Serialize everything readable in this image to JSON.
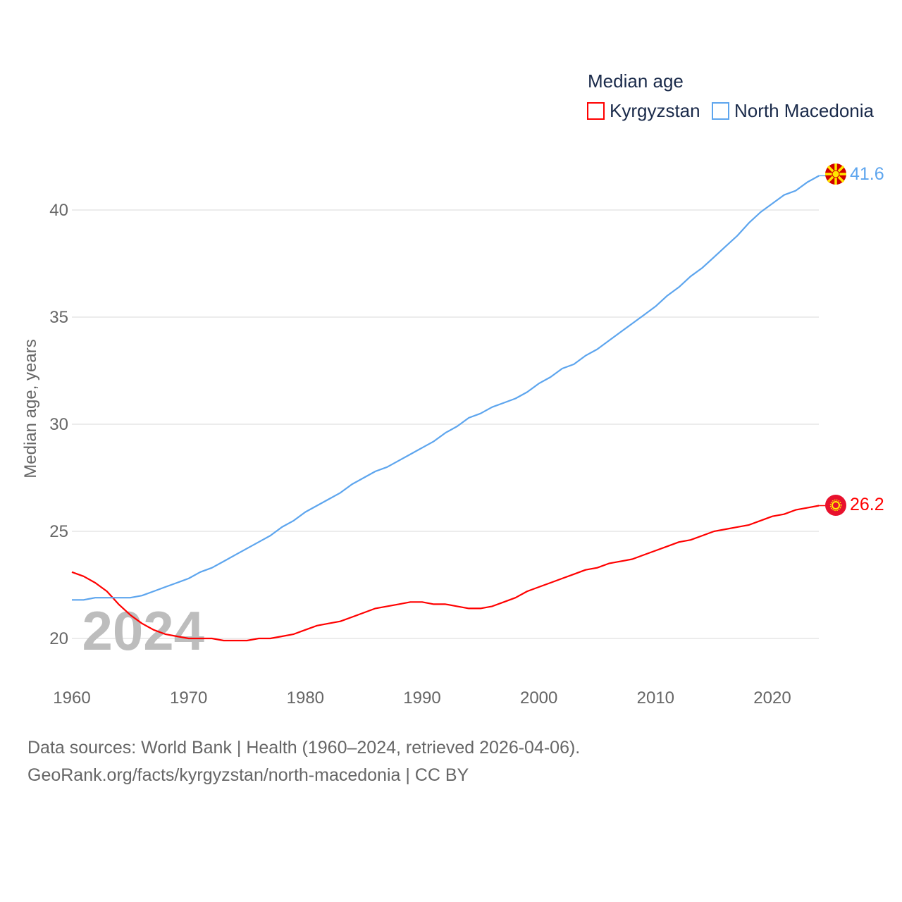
{
  "chart_data": {
    "type": "line",
    "legend_title": "Median age",
    "legend_position": "top-right",
    "ylabel": "Median age, years",
    "xlabel": "",
    "year_watermark": "2024",
    "x": [
      1960,
      1961,
      1962,
      1963,
      1964,
      1965,
      1966,
      1967,
      1968,
      1969,
      1970,
      1971,
      1972,
      1973,
      1974,
      1975,
      1976,
      1977,
      1978,
      1979,
      1980,
      1981,
      1982,
      1983,
      1984,
      1985,
      1986,
      1987,
      1988,
      1989,
      1990,
      1991,
      1992,
      1993,
      1994,
      1995,
      1996,
      1997,
      1998,
      1999,
      2000,
      2001,
      2002,
      2003,
      2004,
      2005,
      2006,
      2007,
      2008,
      2009,
      2010,
      2011,
      2012,
      2013,
      2014,
      2015,
      2016,
      2017,
      2018,
      2019,
      2020,
      2021,
      2022,
      2023,
      2024
    ],
    "xticks": [
      "1960",
      "1970",
      "1980",
      "1990",
      "2000",
      "2010",
      "2020"
    ],
    "yticks": [
      "20",
      "25",
      "30",
      "35",
      "40"
    ],
    "series": [
      {
        "name": "Kyrgyzstan",
        "color": "#ff0000",
        "end_label": "26.2",
        "flag": "kyrgyzstan-flag",
        "values": [
          23.1,
          22.9,
          22.6,
          22.2,
          21.6,
          21.1,
          20.7,
          20.4,
          20.2,
          20.1,
          20.0,
          20.0,
          20.0,
          19.9,
          19.9,
          19.9,
          20.0,
          20.0,
          20.1,
          20.2,
          20.4,
          20.6,
          20.7,
          20.8,
          21.0,
          21.2,
          21.4,
          21.5,
          21.6,
          21.7,
          21.7,
          21.6,
          21.6,
          21.5,
          21.4,
          21.4,
          21.5,
          21.7,
          21.9,
          22.2,
          22.4,
          22.6,
          22.8,
          23.0,
          23.2,
          23.3,
          23.5,
          23.6,
          23.7,
          23.9,
          24.1,
          24.3,
          24.5,
          24.6,
          24.8,
          25.0,
          25.1,
          25.2,
          25.3,
          25.5,
          25.7,
          25.8,
          26.0,
          26.1,
          26.2
        ]
      },
      {
        "name": "North Macedonia",
        "color": "#5da5ee",
        "end_label": "41.6",
        "flag": "north-macedonia-flag",
        "values": [
          21.8,
          21.8,
          21.9,
          21.9,
          21.9,
          21.9,
          22.0,
          22.2,
          22.4,
          22.6,
          22.8,
          23.1,
          23.3,
          23.6,
          23.9,
          24.2,
          24.5,
          24.8,
          25.2,
          25.5,
          25.9,
          26.2,
          26.5,
          26.8,
          27.2,
          27.5,
          27.8,
          28.0,
          28.3,
          28.6,
          28.9,
          29.2,
          29.6,
          29.9,
          30.3,
          30.5,
          30.8,
          31.0,
          31.2,
          31.5,
          31.9,
          32.2,
          32.6,
          32.8,
          33.2,
          33.5,
          33.9,
          34.3,
          34.7,
          35.1,
          35.5,
          36.0,
          36.4,
          36.9,
          37.3,
          37.8,
          38.3,
          38.8,
          39.4,
          39.9,
          40.3,
          40.7,
          40.9,
          41.3,
          41.6
        ]
      }
    ]
  },
  "footer": {
    "line1": "Data sources: World Bank | Health (1960–2024, retrieved 2026-04-06).",
    "line2": "GeoRank.org/facts/kyrgyzstan/north-macedonia | CC BY"
  }
}
